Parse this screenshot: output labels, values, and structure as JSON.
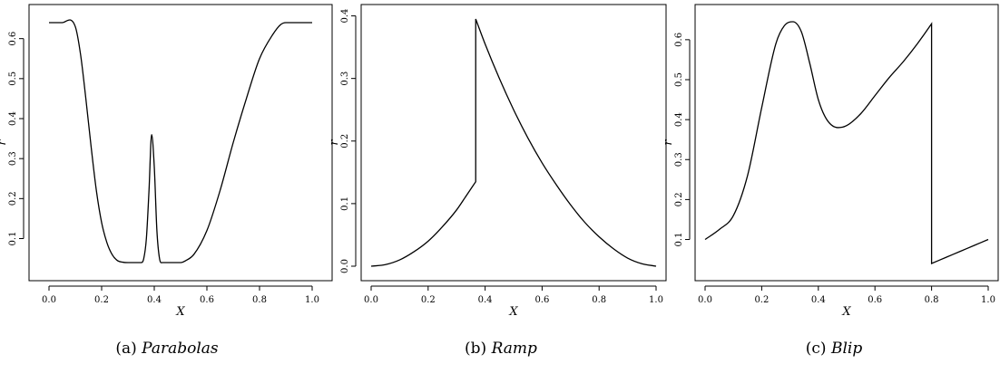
{
  "chart_data": [
    {
      "type": "line",
      "xlabel": "X",
      "ylabel": "r",
      "xlim": [
        0,
        1
      ],
      "ylim": [
        0.04,
        0.64
      ],
      "x_ticks": [
        0.0,
        0.2,
        0.4,
        0.6,
        0.8,
        1.0
      ],
      "x_tick_labels": [
        "0.0",
        "0.2",
        "0.4",
        "0.6",
        "0.8",
        "1.0"
      ],
      "y_ticks": [
        0.1,
        0.2,
        0.3,
        0.4,
        0.5,
        0.6
      ],
      "y_tick_labels": [
        "0.1",
        "0.2",
        "0.3",
        "0.4",
        "0.5",
        "0.6"
      ],
      "grid": false,
      "caption_tag": "(a)",
      "caption_name": "Parabolas",
      "series": [
        {
          "x": [
            0.0,
            0.05,
            0.1,
            0.12,
            0.14,
            0.16,
            0.18,
            0.2,
            0.22,
            0.24,
            0.26,
            0.28,
            0.3,
            0.32,
            0.35,
            0.36,
            0.37,
            0.38,
            0.39,
            0.4,
            0.41,
            0.42,
            0.43,
            0.45,
            0.5,
            0.52,
            0.55,
            0.6,
            0.65,
            0.7,
            0.75,
            0.8,
            0.85,
            0.88,
            0.9,
            0.95,
            1.0
          ],
          "y": [
            0.64,
            0.64,
            0.63,
            0.56,
            0.45,
            0.33,
            0.22,
            0.14,
            0.09,
            0.06,
            0.045,
            0.041,
            0.04,
            0.04,
            0.04,
            0.05,
            0.1,
            0.22,
            0.36,
            0.28,
            0.12,
            0.05,
            0.04,
            0.04,
            0.04,
            0.045,
            0.06,
            0.12,
            0.22,
            0.34,
            0.45,
            0.55,
            0.61,
            0.635,
            0.64,
            0.64,
            0.64
          ]
        }
      ]
    },
    {
      "type": "line",
      "xlabel": "X",
      "ylabel": "r",
      "xlim": [
        0,
        1
      ],
      "ylim": [
        0.0,
        0.395
      ],
      "x_ticks": [
        0.0,
        0.2,
        0.4,
        0.6,
        0.8,
        1.0
      ],
      "x_tick_labels": [
        "0.0",
        "0.2",
        "0.4",
        "0.6",
        "0.8",
        "1.0"
      ],
      "y_ticks": [
        0.0,
        0.1,
        0.2,
        0.3,
        0.4
      ],
      "y_tick_labels": [
        "0.0",
        "0.1",
        "0.2",
        "0.3",
        "0.4"
      ],
      "grid": false,
      "caption_tag": "(b)",
      "caption_name": "Ramp",
      "series": [
        {
          "x": [
            0.0,
            0.05,
            0.1,
            0.15,
            0.2,
            0.25,
            0.3,
            0.33,
            0.367,
            0.367,
            0.4,
            0.45,
            0.5,
            0.55,
            0.6,
            0.65,
            0.7,
            0.75,
            0.8,
            0.85,
            0.9,
            0.95,
            1.0
          ],
          "y": [
            0.0,
            0.0025,
            0.01,
            0.023,
            0.04,
            0.063,
            0.09,
            0.11,
            0.135,
            0.395,
            0.355,
            0.3,
            0.25,
            0.205,
            0.165,
            0.13,
            0.098,
            0.07,
            0.047,
            0.028,
            0.013,
            0.004,
            0.0
          ]
        }
      ]
    },
    {
      "type": "line",
      "xlabel": "X",
      "ylabel": "r",
      "xlim": [
        0,
        1
      ],
      "ylim": [
        0.04,
        0.645
      ],
      "x_ticks": [
        0.0,
        0.2,
        0.4,
        0.6,
        0.8,
        1.0
      ],
      "x_tick_labels": [
        "0.0",
        "0.2",
        "0.4",
        "0.6",
        "0.8",
        "1.0"
      ],
      "y_ticks": [
        0.1,
        0.2,
        0.3,
        0.4,
        0.5,
        0.6
      ],
      "y_tick_labels": [
        "0.1",
        "0.2",
        "0.3",
        "0.4",
        "0.5",
        "0.6"
      ],
      "grid": false,
      "caption_tag": "(c)",
      "caption_name": "Blip",
      "series": [
        {
          "x": [
            0.0,
            0.05,
            0.1,
            0.15,
            0.2,
            0.25,
            0.28,
            0.31,
            0.34,
            0.37,
            0.4,
            0.43,
            0.47,
            0.5,
            0.55,
            0.6,
            0.65,
            0.7,
            0.75,
            0.8,
            0.8,
            0.85,
            0.9,
            0.95,
            1.0
          ],
          "y": [
            0.1,
            0.125,
            0.16,
            0.26,
            0.43,
            0.59,
            0.635,
            0.645,
            0.62,
            0.54,
            0.45,
            0.4,
            0.38,
            0.385,
            0.415,
            0.46,
            0.505,
            0.545,
            0.59,
            0.64,
            0.04,
            0.055,
            0.07,
            0.085,
            0.1
          ]
        }
      ]
    }
  ]
}
